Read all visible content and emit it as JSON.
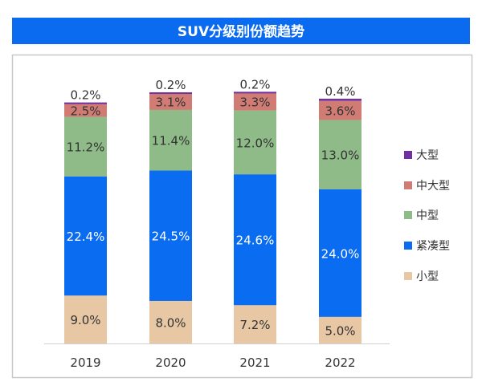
{
  "chart_data": {
    "type": "bar",
    "stacked": true,
    "title": "SUV分级别份额趋势",
    "categories": [
      "2019",
      "2020",
      "2021",
      "2022"
    ],
    "series": [
      {
        "name": "小型",
        "color": "#e8c7a4",
        "values": [
          9.0,
          8.0,
          7.2,
          5.0
        ]
      },
      {
        "name": "紧凑型",
        "color": "#0a6cf0",
        "values": [
          22.4,
          24.5,
          24.6,
          24.0
        ]
      },
      {
        "name": "中型",
        "color": "#8fbb88",
        "values": [
          11.2,
          11.4,
          12.0,
          13.0
        ]
      },
      {
        "name": "中大型",
        "color": "#d07c74",
        "values": [
          2.5,
          3.1,
          3.3,
          3.6
        ]
      },
      {
        "name": "大型",
        "color": "#7030a0",
        "values": [
          0.2,
          0.2,
          0.2,
          0.4
        ]
      }
    ],
    "value_format": "percent",
    "legend": "right",
    "grid": false,
    "ylim": [
      0,
      50
    ]
  },
  "colors": {
    "title_bar": "#0a6af0",
    "frame": "#c8c8c8"
  }
}
